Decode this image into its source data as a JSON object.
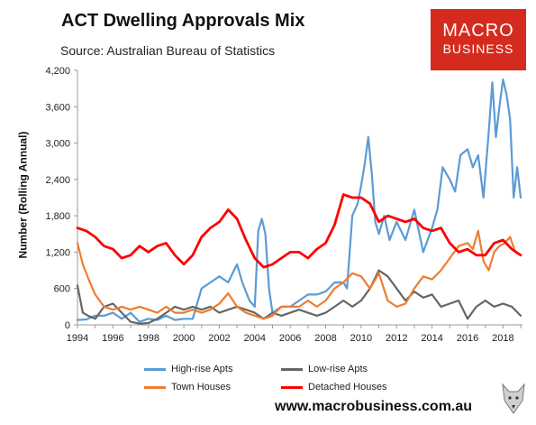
{
  "chart_title": "ACT Dwelling Approvals Mix",
  "chart_source": "Source: Australian Bureau of Statistics",
  "logo": {
    "line1": "MACRO",
    "line2": "BUSINESS"
  },
  "website": "www.macrobusiness.com.au",
  "chart_data": {
    "type": "line",
    "title": "ACT Dwelling Approvals Mix",
    "subtitle": "Source: Australian Bureau of Statistics",
    "xlabel": "",
    "ylabel": "Number (Rolling Annual)",
    "xlim": [
      1994,
      2019.1
    ],
    "ylim": [
      0,
      4200
    ],
    "x_ticks": [
      "1994",
      "1996",
      "1998",
      "2000",
      "2002",
      "2004",
      "2006",
      "2008",
      "2010",
      "2012",
      "2014",
      "2016",
      "2018"
    ],
    "y_ticks": [
      "0",
      "600",
      "1,200",
      "1,800",
      "2,400",
      "3,000",
      "3,600",
      "4,200"
    ],
    "grid": false,
    "legend_position": "bottom",
    "series": [
      {
        "name": "High-rise Apts",
        "color": "#5b9bd5",
        "points": [
          [
            1994,
            80
          ],
          [
            1994.5,
            90
          ],
          [
            1995,
            150
          ],
          [
            1995.5,
            150
          ],
          [
            1996,
            200
          ],
          [
            1996.5,
            100
          ],
          [
            1997,
            200
          ],
          [
            1997.5,
            50
          ],
          [
            1998,
            100
          ],
          [
            1998.5,
            80
          ],
          [
            1999,
            150
          ],
          [
            1999.5,
            80
          ],
          [
            2000,
            100
          ],
          [
            2000.5,
            100
          ],
          [
            2001,
            600
          ],
          [
            2001.5,
            700
          ],
          [
            2002,
            800
          ],
          [
            2002.5,
            700
          ],
          [
            2003,
            1000
          ],
          [
            2003.3,
            700
          ],
          [
            2003.7,
            400
          ],
          [
            2004,
            300
          ],
          [
            2004.2,
            1550
          ],
          [
            2004.4,
            1750
          ],
          [
            2004.6,
            1500
          ],
          [
            2004.8,
            600
          ],
          [
            2005,
            200
          ],
          [
            2005.5,
            300
          ],
          [
            2006,
            300
          ],
          [
            2006.5,
            400
          ],
          [
            2007,
            500
          ],
          [
            2007.5,
            500
          ],
          [
            2008,
            550
          ],
          [
            2008.5,
            700
          ],
          [
            2009,
            700
          ],
          [
            2009.2,
            600
          ],
          [
            2009.5,
            1800
          ],
          [
            2009.8,
            2000
          ],
          [
            2010,
            2300
          ],
          [
            2010.2,
            2650
          ],
          [
            2010.4,
            3100
          ],
          [
            2010.6,
            2500
          ],
          [
            2010.8,
            1700
          ],
          [
            2011,
            1500
          ],
          [
            2011.3,
            1800
          ],
          [
            2011.6,
            1400
          ],
          [
            2012,
            1700
          ],
          [
            2012.5,
            1400
          ],
          [
            2013,
            1900
          ],
          [
            2013.5,
            1200
          ],
          [
            2014,
            1600
          ],
          [
            2014.3,
            1900
          ],
          [
            2014.6,
            2600
          ],
          [
            2015,
            2400
          ],
          [
            2015.3,
            2200
          ],
          [
            2015.6,
            2800
          ],
          [
            2016,
            2900
          ],
          [
            2016.3,
            2600
          ],
          [
            2016.6,
            2800
          ],
          [
            2016.9,
            2100
          ],
          [
            2017.2,
            3200
          ],
          [
            2017.4,
            4000
          ],
          [
            2017.6,
            3100
          ],
          [
            2017.8,
            3600
          ],
          [
            2018,
            4050
          ],
          [
            2018.2,
            3800
          ],
          [
            2018.4,
            3400
          ],
          [
            2018.6,
            2100
          ],
          [
            2018.8,
            2600
          ],
          [
            2019,
            2100
          ]
        ]
      },
      {
        "name": "Low-rise Apts",
        "color": "#666666",
        "points": [
          [
            1994,
            650
          ],
          [
            1994.3,
            200
          ],
          [
            1994.6,
            150
          ],
          [
            1995,
            100
          ],
          [
            1995.5,
            300
          ],
          [
            1996,
            350
          ],
          [
            1996.5,
            200
          ],
          [
            1997,
            50
          ],
          [
            1997.5,
            20
          ],
          [
            1998,
            30
          ],
          [
            1998.5,
            100
          ],
          [
            1999,
            200
          ],
          [
            1999.5,
            300
          ],
          [
            2000,
            250
          ],
          [
            2000.5,
            300
          ],
          [
            2001,
            250
          ],
          [
            2001.5,
            300
          ],
          [
            2002,
            200
          ],
          [
            2002.5,
            250
          ],
          [
            2003,
            300
          ],
          [
            2003.5,
            250
          ],
          [
            2004,
            200
          ],
          [
            2004.5,
            100
          ],
          [
            2005,
            200
          ],
          [
            2005.5,
            150
          ],
          [
            2006,
            200
          ],
          [
            2006.5,
            250
          ],
          [
            2007,
            200
          ],
          [
            2007.5,
            150
          ],
          [
            2008,
            200
          ],
          [
            2008.5,
            300
          ],
          [
            2009,
            400
          ],
          [
            2009.5,
            300
          ],
          [
            2010,
            400
          ],
          [
            2010.5,
            600
          ],
          [
            2011,
            900
          ],
          [
            2011.5,
            800
          ],
          [
            2012,
            600
          ],
          [
            2012.5,
            400
          ],
          [
            2013,
            550
          ],
          [
            2013.5,
            450
          ],
          [
            2014,
            500
          ],
          [
            2014.5,
            300
          ],
          [
            2015,
            350
          ],
          [
            2015.5,
            400
          ],
          [
            2016,
            100
          ],
          [
            2016.5,
            300
          ],
          [
            2017,
            400
          ],
          [
            2017.5,
            300
          ],
          [
            2018,
            350
          ],
          [
            2018.5,
            300
          ],
          [
            2019,
            150
          ]
        ]
      },
      {
        "name": "Town Houses",
        "color": "#ed7d31",
        "points": [
          [
            1994,
            1350
          ],
          [
            1994.3,
            1000
          ],
          [
            1994.7,
            700
          ],
          [
            1995,
            500
          ],
          [
            1995.5,
            300
          ],
          [
            1996,
            250
          ],
          [
            1996.5,
            300
          ],
          [
            1997,
            250
          ],
          [
            1997.5,
            300
          ],
          [
            1998,
            250
          ],
          [
            1998.5,
            200
          ],
          [
            1999,
            300
          ],
          [
            1999.5,
            200
          ],
          [
            2000,
            200
          ],
          [
            2000.5,
            250
          ],
          [
            2001,
            200
          ],
          [
            2001.5,
            250
          ],
          [
            2002,
            350
          ],
          [
            2002.5,
            520
          ],
          [
            2003,
            300
          ],
          [
            2003.5,
            200
          ],
          [
            2004,
            150
          ],
          [
            2004.5,
            100
          ],
          [
            2005,
            150
          ],
          [
            2005.5,
            300
          ],
          [
            2006,
            300
          ],
          [
            2006.5,
            300
          ],
          [
            2007,
            400
          ],
          [
            2007.5,
            300
          ],
          [
            2008,
            400
          ],
          [
            2008.5,
            600
          ],
          [
            2009,
            700
          ],
          [
            2009.5,
            850
          ],
          [
            2010,
            800
          ],
          [
            2010.5,
            600
          ],
          [
            2011,
            850
          ],
          [
            2011.5,
            400
          ],
          [
            2012,
            300
          ],
          [
            2012.5,
            350
          ],
          [
            2013,
            600
          ],
          [
            2013.5,
            800
          ],
          [
            2014,
            750
          ],
          [
            2014.5,
            900
          ],
          [
            2015,
            1100
          ],
          [
            2015.5,
            1300
          ],
          [
            2016,
            1350
          ],
          [
            2016.3,
            1250
          ],
          [
            2016.6,
            1550
          ],
          [
            2016.9,
            1050
          ],
          [
            2017.2,
            900
          ],
          [
            2017.5,
            1200
          ],
          [
            2017.8,
            1300
          ],
          [
            2018.1,
            1350
          ],
          [
            2018.4,
            1450
          ],
          [
            2018.7,
            1200
          ],
          [
            2019,
            1150
          ]
        ]
      },
      {
        "name": "Detached Houses",
        "color": "#ff0000",
        "points": [
          [
            1994,
            1600
          ],
          [
            1994.5,
            1550
          ],
          [
            1995,
            1450
          ],
          [
            1995.5,
            1300
          ],
          [
            1996,
            1250
          ],
          [
            1996.5,
            1100
          ],
          [
            1997,
            1150
          ],
          [
            1997.5,
            1300
          ],
          [
            1998,
            1200
          ],
          [
            1998.5,
            1300
          ],
          [
            1999,
            1350
          ],
          [
            1999.5,
            1150
          ],
          [
            2000,
            1000
          ],
          [
            2000.5,
            1150
          ],
          [
            2001,
            1450
          ],
          [
            2001.5,
            1600
          ],
          [
            2002,
            1700
          ],
          [
            2002.5,
            1900
          ],
          [
            2003,
            1750
          ],
          [
            2003.5,
            1400
          ],
          [
            2004,
            1100
          ],
          [
            2004.5,
            950
          ],
          [
            2005,
            1000
          ],
          [
            2005.5,
            1100
          ],
          [
            2006,
            1200
          ],
          [
            2006.5,
            1200
          ],
          [
            2007,
            1100
          ],
          [
            2007.5,
            1250
          ],
          [
            2008,
            1350
          ],
          [
            2008.5,
            1650
          ],
          [
            2009,
            2150
          ],
          [
            2009.5,
            2100
          ],
          [
            2010,
            2100
          ],
          [
            2010.5,
            2000
          ],
          [
            2011,
            1700
          ],
          [
            2011.5,
            1800
          ],
          [
            2012,
            1750
          ],
          [
            2012.5,
            1700
          ],
          [
            2013,
            1750
          ],
          [
            2013.5,
            1600
          ],
          [
            2014,
            1550
          ],
          [
            2014.5,
            1600
          ],
          [
            2015,
            1350
          ],
          [
            2015.5,
            1200
          ],
          [
            2016,
            1250
          ],
          [
            2016.5,
            1150
          ],
          [
            2017,
            1150
          ],
          [
            2017.5,
            1350
          ],
          [
            2018,
            1400
          ],
          [
            2018.5,
            1250
          ],
          [
            2019,
            1150
          ]
        ]
      }
    ]
  }
}
